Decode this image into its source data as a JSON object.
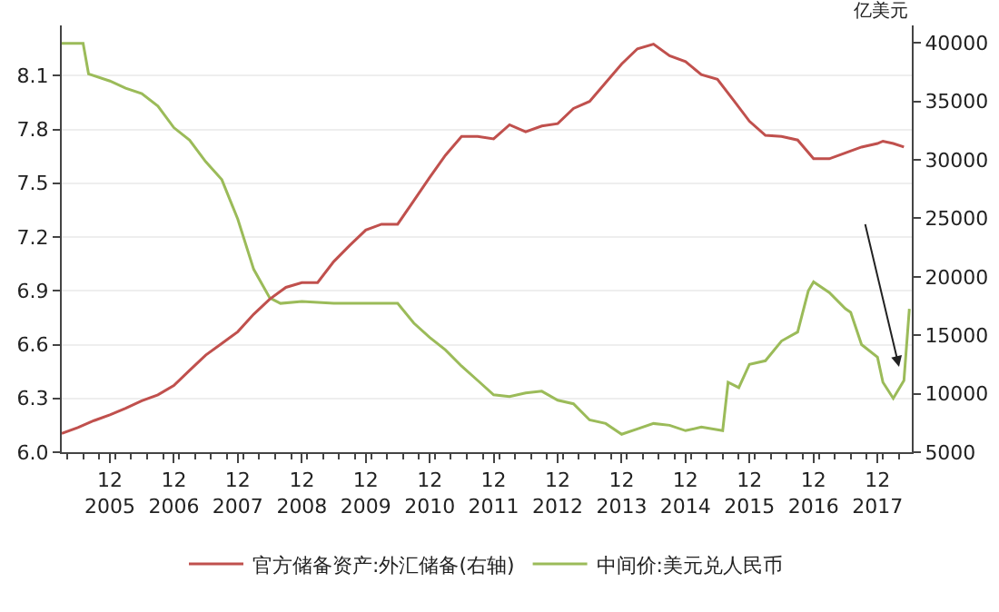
{
  "chart_data": {
    "type": "line",
    "y2label": "亿美元",
    "xlim": [
      "2005-03-01",
      "2018-06-15"
    ],
    "xticks": [
      {
        "value": "2005-12-01",
        "label": "12\n2005"
      },
      {
        "value": "2006-12-01",
        "label": "12\n2006"
      },
      {
        "value": "2007-12-01",
        "label": "12\n2007"
      },
      {
        "value": "2008-12-01",
        "label": "12\n2008"
      },
      {
        "value": "2009-12-01",
        "label": "12\n2009"
      },
      {
        "value": "2010-12-01",
        "label": "12\n2010"
      },
      {
        "value": "2011-12-01",
        "label": "12\n2011"
      },
      {
        "value": "2012-12-01",
        "label": "12\n2012"
      },
      {
        "value": "2013-12-01",
        "label": "12\n2013"
      },
      {
        "value": "2014-12-01",
        "label": "12\n2014"
      },
      {
        "value": "2015-12-01",
        "label": "12\n2015"
      },
      {
        "value": "2016-12-01",
        "label": "12\n2016"
      },
      {
        "value": "2017-12-01",
        "label": "12\n2017"
      }
    ],
    "ylim": [
      6.0,
      8.38
    ],
    "yticks": [
      {
        "value": 6,
        "label": "6.0"
      },
      6.3,
      6.6,
      6.9,
      7.2,
      7.5,
      7.8,
      8.1
    ],
    "y2lim": [
      5000,
      41500
    ],
    "y2ticks": [
      5000,
      10000,
      15000,
      20000,
      25000,
      30000,
      35000,
      40000
    ],
    "grid": "y",
    "legend": "bottom",
    "line_style": "solid",
    "marker": "none",
    "series": [
      {
        "name": "官方储备资产:外汇储备(右轴)",
        "color": "#c0504d",
        "axis": "y2",
        "x": [
          "2005-03",
          "2005-06",
          "2005-09",
          "2005-12",
          "2006-03",
          "2006-06",
          "2006-09",
          "2006-12",
          "2007-03",
          "2007-06",
          "2007-09",
          "2007-12",
          "2008-03",
          "2008-06",
          "2008-09",
          "2008-12",
          "2009-03",
          "2009-06",
          "2009-09",
          "2009-12",
          "2010-03",
          "2010-06",
          "2010-09",
          "2010-12",
          "2011-03",
          "2011-06",
          "2011-09",
          "2011-12",
          "2012-03",
          "2012-06",
          "2012-09",
          "2012-12",
          "2013-03",
          "2013-06",
          "2013-09",
          "2013-12",
          "2014-03",
          "2014-06",
          "2014-09",
          "2014-12",
          "2015-03",
          "2015-06",
          "2015-09",
          "2015-12",
          "2016-03",
          "2016-06",
          "2016-09",
          "2016-12",
          "2017-03",
          "2017-06",
          "2017-09",
          "2017-12",
          "2018-01",
          "2018-03",
          "2018-05"
        ],
        "values": [
          6600,
          7100,
          7700,
          8200,
          8750,
          9400,
          9900,
          10700,
          12000,
          13300,
          14300,
          15300,
          16800,
          18100,
          19100,
          19500,
          19500,
          21300,
          22700,
          24000,
          24500,
          24500,
          26500,
          28500,
          30400,
          32000,
          32000,
          31800,
          33000,
          32400,
          32900,
          33100,
          34400,
          35000,
          36600,
          38200,
          39500,
          39900,
          38900,
          38400,
          37300,
          36900,
          35100,
          33300,
          32100,
          32000,
          31700,
          30100,
          30100,
          30600,
          31100,
          31400,
          31600,
          31400,
          31100
        ]
      },
      {
        "name": "中间价:美元兑人民币",
        "color": "#9bbb59",
        "x": [
          "2005-03",
          "2005-07",
          "2005-08",
          "2005-12",
          "2006-03",
          "2006-06",
          "2006-09",
          "2006-12",
          "2007-03",
          "2007-06",
          "2007-09",
          "2007-12",
          "2008-03",
          "2008-06",
          "2008-08",
          "2008-12",
          "2009-06",
          "2009-12",
          "2010-06",
          "2010-09",
          "2010-12",
          "2011-03",
          "2011-06",
          "2011-09",
          "2011-12",
          "2012-03",
          "2012-06",
          "2012-09",
          "2012-12",
          "2013-03",
          "2013-06",
          "2013-09",
          "2013-12",
          "2014-03",
          "2014-06",
          "2014-09",
          "2014-12",
          "2015-03",
          "2015-07",
          "2015-08",
          "2015-10",
          "2015-12",
          "2016-03",
          "2016-06",
          "2016-09",
          "2016-11",
          "2016-12",
          "2017-03",
          "2017-06",
          "2017-07",
          "2017-09",
          "2017-12",
          "2018-01",
          "2018-03",
          "2018-05",
          "2018-06"
        ],
        "values": [
          8.28,
          8.28,
          8.11,
          8.07,
          8.03,
          8.0,
          7.93,
          7.81,
          7.74,
          7.62,
          7.52,
          7.3,
          7.02,
          6.86,
          6.83,
          6.84,
          6.83,
          6.83,
          6.83,
          6.72,
          6.64,
          6.57,
          6.48,
          6.4,
          6.32,
          6.31,
          6.33,
          6.34,
          6.29,
          6.27,
          6.18,
          6.16,
          6.1,
          6.13,
          6.16,
          6.15,
          6.12,
          6.14,
          6.12,
          6.39,
          6.36,
          6.49,
          6.51,
          6.62,
          6.67,
          6.9,
          6.95,
          6.89,
          6.8,
          6.78,
          6.6,
          6.53,
          6.39,
          6.3,
          6.4,
          6.8
        ]
      }
    ]
  }
}
